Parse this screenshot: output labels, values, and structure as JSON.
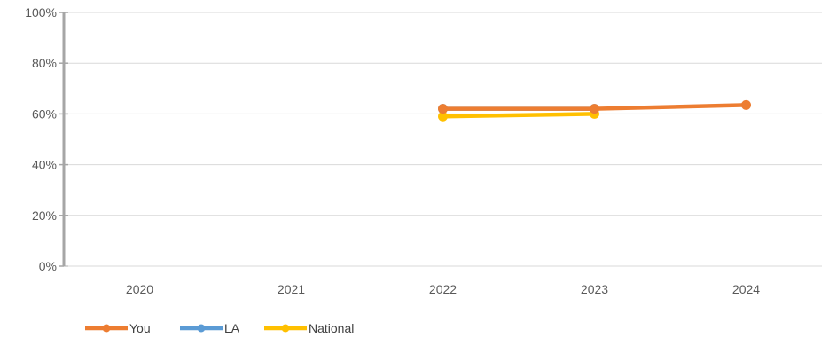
{
  "chart_data": {
    "type": "line",
    "title": "",
    "xlabel": "",
    "ylabel": "",
    "categories": [
      "2020",
      "2021",
      "2022",
      "2023",
      "2024"
    ],
    "ylim": [
      0,
      100
    ],
    "y_ticks": [
      "0%",
      "20%",
      "40%",
      "60%",
      "80%",
      "100%"
    ],
    "y_tick_values": [
      0,
      20,
      40,
      60,
      80,
      100
    ],
    "grid": true,
    "legend_position": "bottom-left",
    "series": [
      {
        "name": "You",
        "color": "#ED7D31",
        "values": [
          null,
          null,
          62,
          62,
          63.5
        ]
      },
      {
        "name": "LA",
        "color": "#5B9BD5",
        "values": [
          null,
          null,
          62,
          62,
          null
        ]
      },
      {
        "name": "National",
        "color": "#FFC000",
        "values": [
          null,
          null,
          59,
          60,
          null
        ]
      }
    ]
  }
}
